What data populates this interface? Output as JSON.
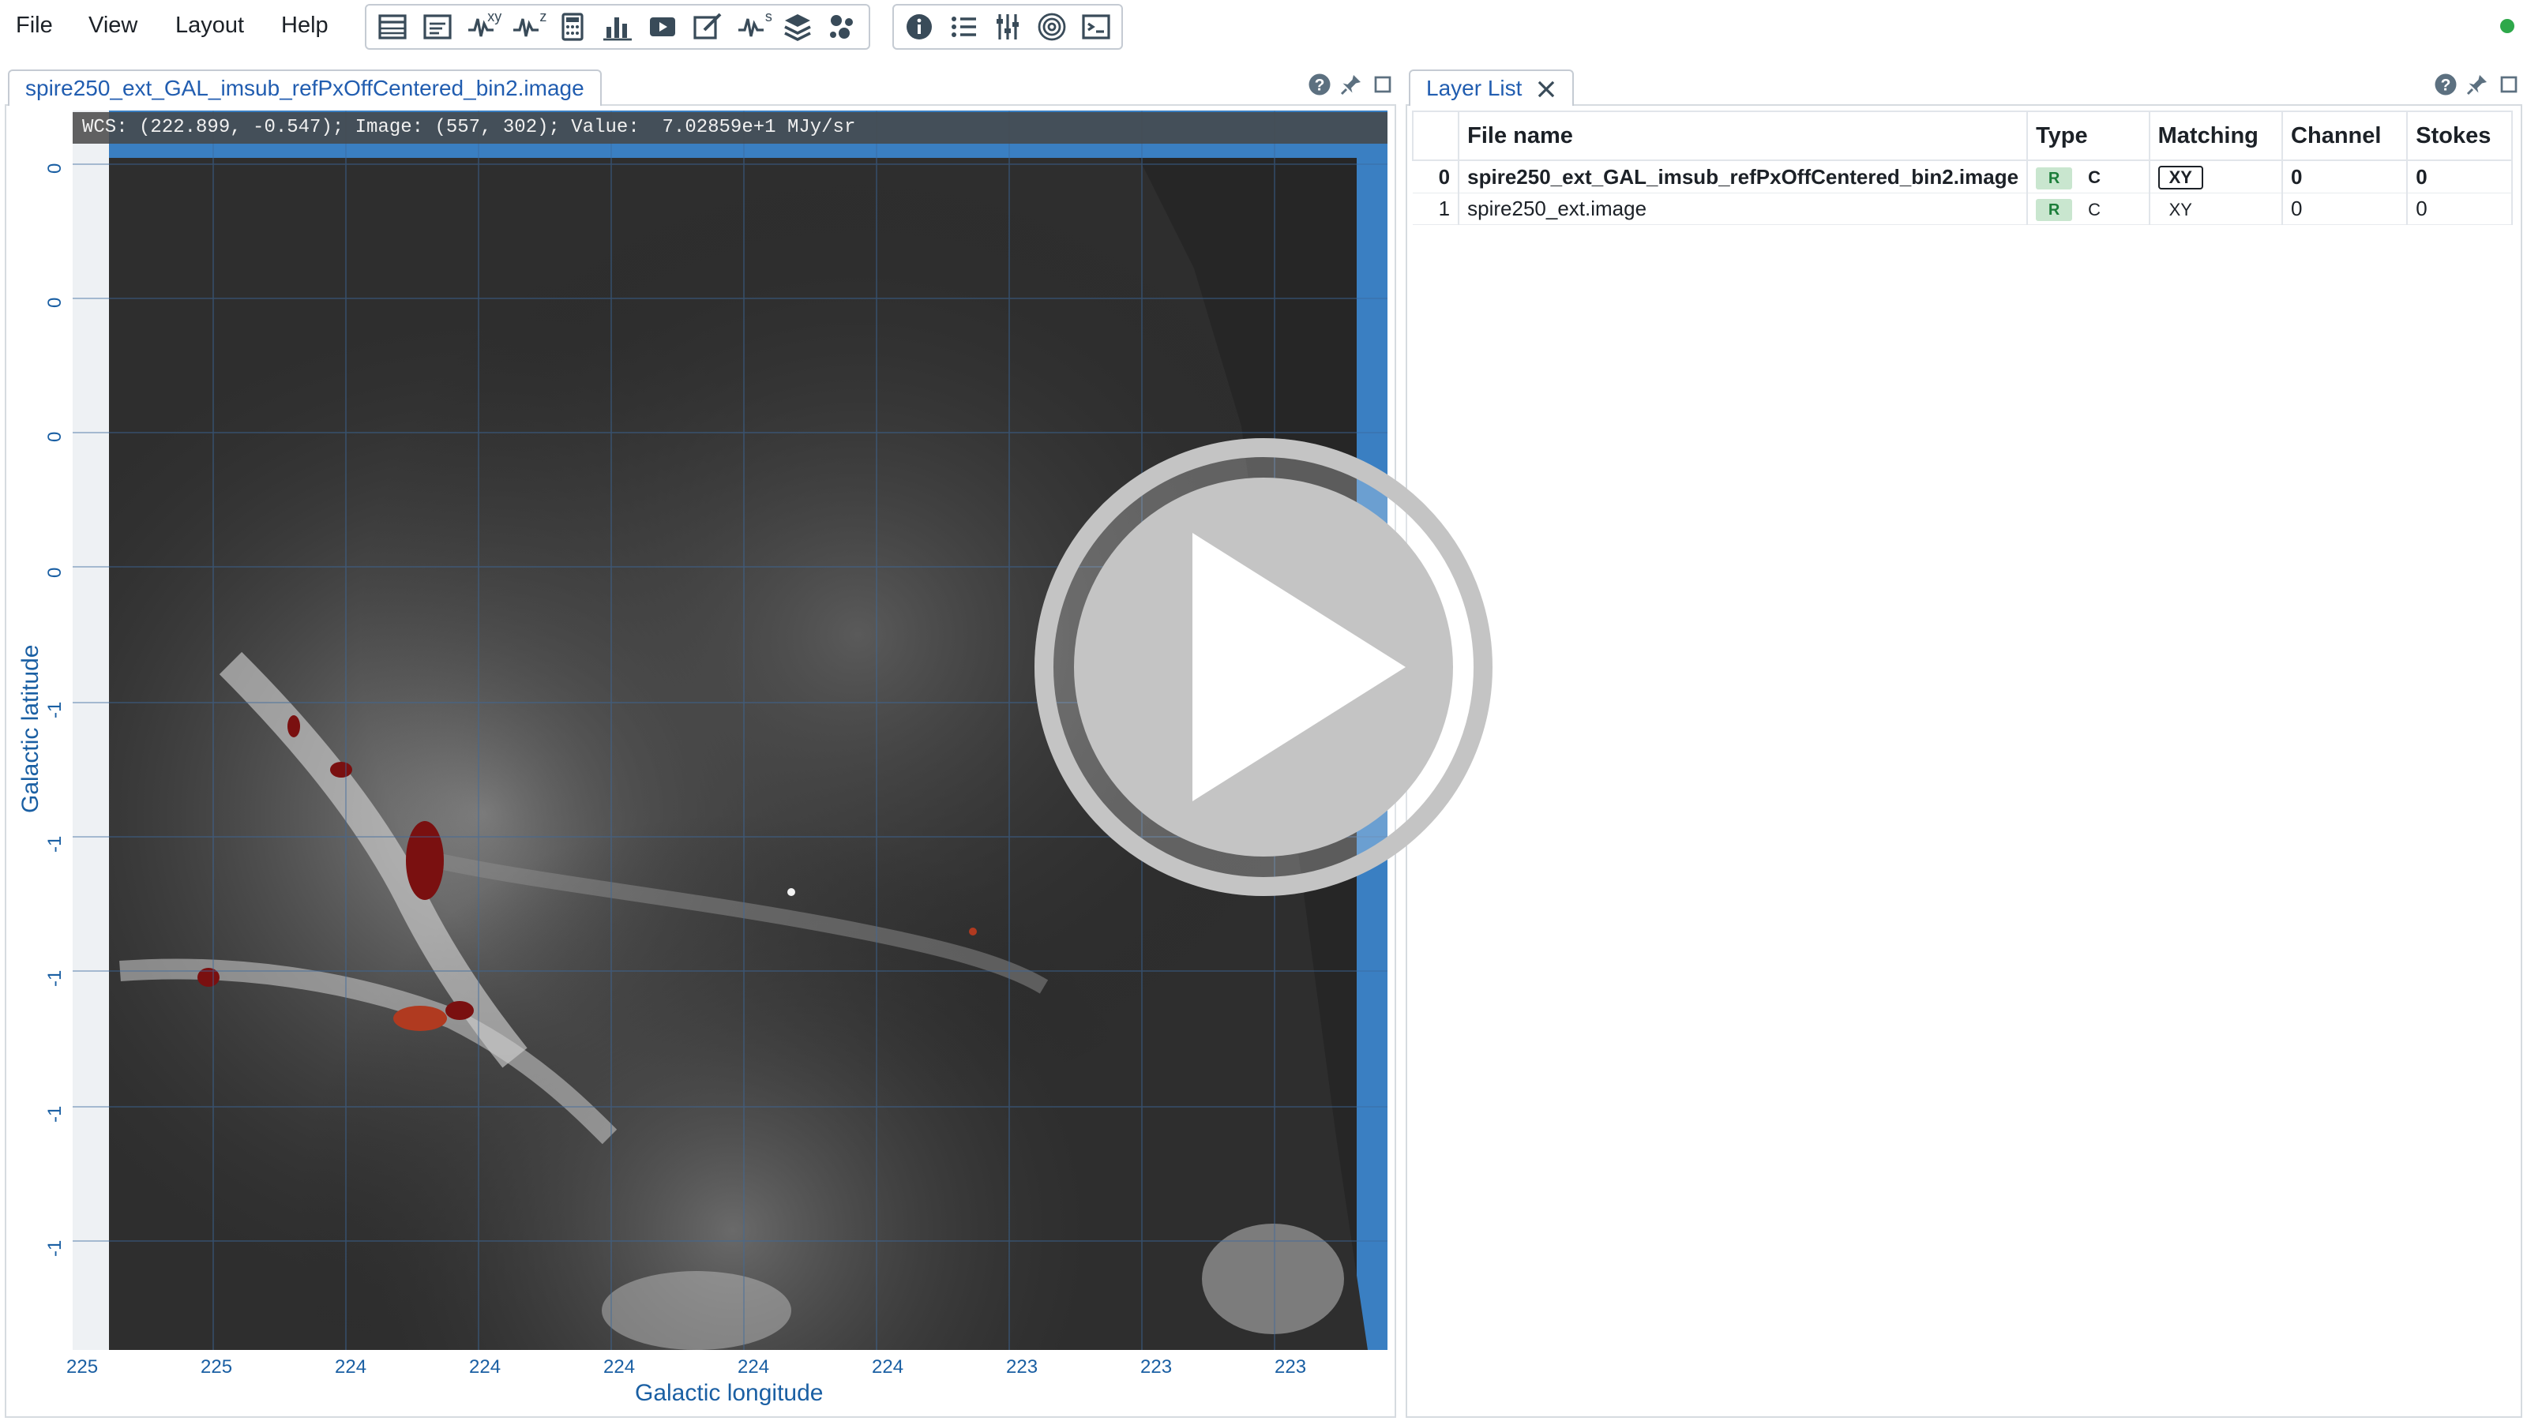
{
  "menu": {
    "items": [
      "File",
      "View",
      "Layout",
      "Help"
    ]
  },
  "toolbar": {
    "group1_icons": [
      "table-icon",
      "header-icon",
      "spatial-profile-xy-icon",
      "spectral-profile-z-icon",
      "calculator-icon",
      "histogram-icon",
      "animator-icon",
      "edit-icon",
      "stokes-profile-icon",
      "layers-icon",
      "catalog-icon"
    ],
    "superscripts": {
      "xy": "xy",
      "z": "z",
      "s": "s"
    },
    "group2_icons": [
      "info-icon",
      "region-list-icon",
      "render-config-icon",
      "contour-icon",
      "log-icon"
    ]
  },
  "status": {
    "color": "#2ea84a"
  },
  "viewer": {
    "tab_title": "spire250_ext_GAL_imsub_refPxOffCentered_bin2.image",
    "cursor_info": "WCS: (222.899, -0.547); Image: (557, 302); Value:  7.02859e+1 MJy/sr",
    "y_ticks": [
      "0",
      "0",
      "0",
      "0",
      "-1",
      "-1",
      "-1",
      "-1",
      "-1"
    ],
    "x_ticks": [
      "225",
      "225",
      "224",
      "224",
      "224",
      "224",
      "224",
      "223",
      "223",
      "223"
    ],
    "x_axis_label": "Galactic longitude",
    "y_axis_label": "Galactic latitude"
  },
  "layer_list": {
    "tab_title": "Layer List",
    "columns": [
      "",
      "File name",
      "Type",
      "Matching",
      "Channel",
      "Stokes"
    ],
    "rows": [
      {
        "index": "0",
        "file": "spire250_ext_GAL_imsub_refPxOffCentered_bin2.image",
        "type_r": "R",
        "type_c": "C",
        "matching": "XY",
        "channel": "0",
        "stokes": "0"
      },
      {
        "index": "1",
        "file": "spire250_ext.image",
        "type_r": "R",
        "type_c": "C",
        "matching": "XY",
        "channel": "0",
        "stokes": "0"
      }
    ]
  },
  "colors": {
    "accent": "#215db0",
    "axis": "#1a5fa3",
    "blank": "#3a7fc2"
  }
}
